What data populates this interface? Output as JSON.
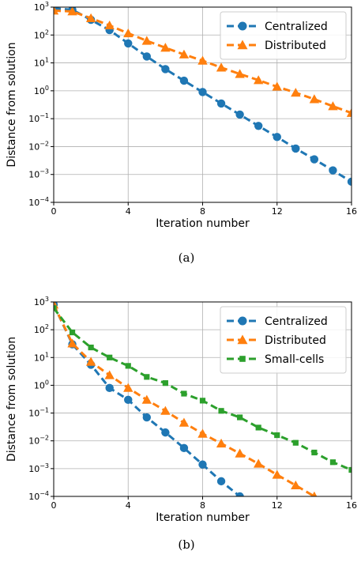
{
  "figure": {
    "captions": [
      "(a)",
      "(b)"
    ]
  },
  "colors": {
    "centralized": "#1f77b4",
    "distributed": "#ff7f0e",
    "small_cells": "#2ca02c",
    "grid": "#b0b0b0"
  },
  "chart_data": [
    {
      "type": "line",
      "caption": "(a)",
      "xlabel": "Iteration number",
      "ylabel": "Distance from solution",
      "xlim": [
        0,
        16
      ],
      "ylim": [
        0.0001,
        1000
      ],
      "yscale": "log",
      "grid": true,
      "xticks": [
        "0",
        "4",
        "8",
        "12",
        "16"
      ],
      "yticks": [
        "10^-4",
        "10^-3",
        "10^-2",
        "10^-1",
        "10^0",
        "10^1",
        "10^2",
        "10^3"
      ],
      "legend": "top-right",
      "series": [
        {
          "name": "Centralized",
          "marker": "circle",
          "x": [
            0,
            1,
            2,
            3,
            4,
            5,
            6,
            7,
            8,
            9,
            10,
            11,
            12,
            13,
            14,
            15,
            16
          ],
          "y": [
            900,
            800,
            350,
            150,
            50,
            17,
            6,
            2.3,
            0.9,
            0.35,
            0.14,
            0.055,
            0.022,
            0.0085,
            0.0035,
            0.0014,
            0.00055
          ]
        },
        {
          "name": "Distributed",
          "marker": "triangle",
          "x": [
            0,
            1,
            2,
            3,
            4,
            5,
            6,
            7,
            8,
            9,
            10,
            11,
            12,
            13,
            14,
            15,
            16
          ],
          "y": [
            750,
            700,
            400,
            220,
            115,
            62,
            35,
            20,
            12,
            6.8,
            4,
            2.4,
            1.4,
            0.85,
            0.5,
            0.28,
            0.16
          ]
        }
      ]
    },
    {
      "type": "line",
      "caption": "(b)",
      "xlabel": "Iteration number",
      "ylabel": "Distance from solution",
      "xlim": [
        0,
        16
      ],
      "ylim": [
        0.0001,
        1000
      ],
      "yscale": "log",
      "grid": true,
      "xticks": [
        "0",
        "4",
        "8",
        "12",
        "16"
      ],
      "yticks": [
        "10^-4",
        "10^-3",
        "10^-2",
        "10^-1",
        "10^0",
        "10^1",
        "10^2",
        "10^3"
      ],
      "legend": "top-right",
      "series": [
        {
          "name": "Centralized",
          "marker": "circle",
          "x": [
            0,
            1,
            2,
            3,
            4,
            5,
            6,
            7,
            8,
            9,
            10
          ],
          "y": [
            800,
            30,
            5.5,
            0.8,
            0.3,
            0.07,
            0.02,
            0.0055,
            0.0014,
            0.00035,
            0.0001
          ]
        },
        {
          "name": "Distributed",
          "marker": "triangle",
          "x": [
            0,
            1,
            2,
            3,
            4,
            5,
            6,
            7,
            8,
            9,
            10,
            11,
            12,
            13,
            14
          ],
          "y": [
            800,
            32,
            7,
            2.3,
            0.8,
            0.3,
            0.12,
            0.045,
            0.018,
            0.008,
            0.0035,
            0.0015,
            0.0006,
            0.00025,
            0.0001
          ]
        },
        {
          "name": "Small-cells",
          "marker": "square",
          "x": [
            0,
            1,
            2,
            3,
            4,
            5,
            6,
            7,
            8,
            9,
            10,
            11,
            12,
            13,
            14,
            15,
            16
          ],
          "y": [
            600,
            80,
            23,
            10,
            5,
            2,
            1.2,
            0.5,
            0.28,
            0.12,
            0.07,
            0.03,
            0.016,
            0.0085,
            0.0038,
            0.0017,
            0.0009
          ]
        }
      ]
    }
  ]
}
